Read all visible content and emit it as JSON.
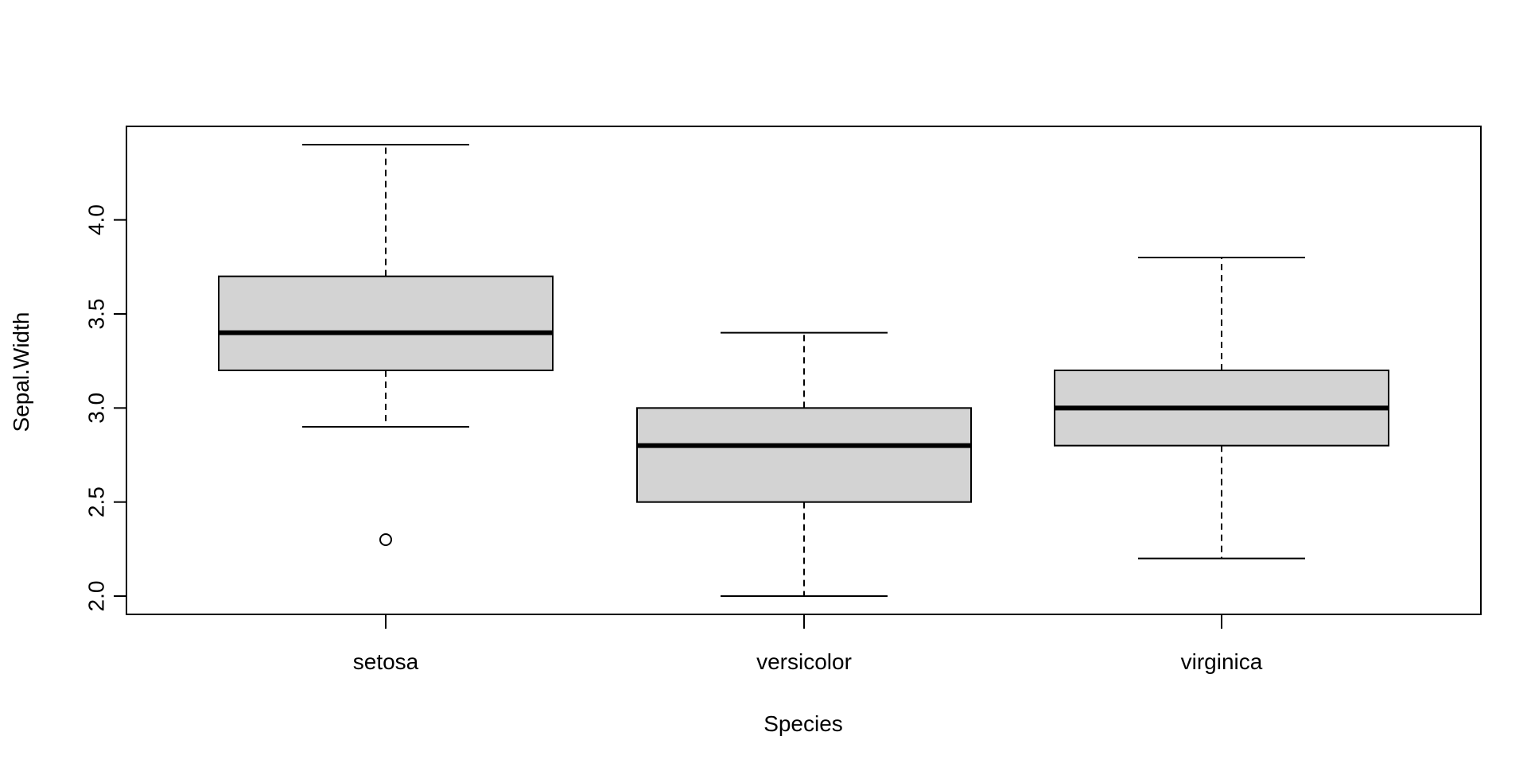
{
  "chart_data": {
    "type": "box",
    "title": "",
    "xlabel": "Species",
    "ylabel": "Sepal.Width",
    "categories": [
      "setosa",
      "versicolor",
      "virginica"
    ],
    "boxes": [
      {
        "category": "setosa",
        "whisker_low": 2.9,
        "q1": 3.2,
        "median": 3.4,
        "q3": 3.7,
        "whisker_high": 4.4,
        "outliers": [
          2.3
        ]
      },
      {
        "category": "versicolor",
        "whisker_low": 2.0,
        "q1": 2.5,
        "median": 2.8,
        "q3": 3.0,
        "whisker_high": 3.4,
        "outliers": []
      },
      {
        "category": "virginica",
        "whisker_low": 2.2,
        "q1": 2.8,
        "median": 3.0,
        "q3": 3.2,
        "whisker_high": 3.8,
        "outliers": []
      }
    ],
    "yticks": [
      "2.0",
      "2.5",
      "3.0",
      "3.5",
      "4.0"
    ],
    "ylim": [
      1.95,
      4.4
    ],
    "grid": false,
    "box_fill": "#d3d3d3",
    "line_color": "#000000"
  }
}
